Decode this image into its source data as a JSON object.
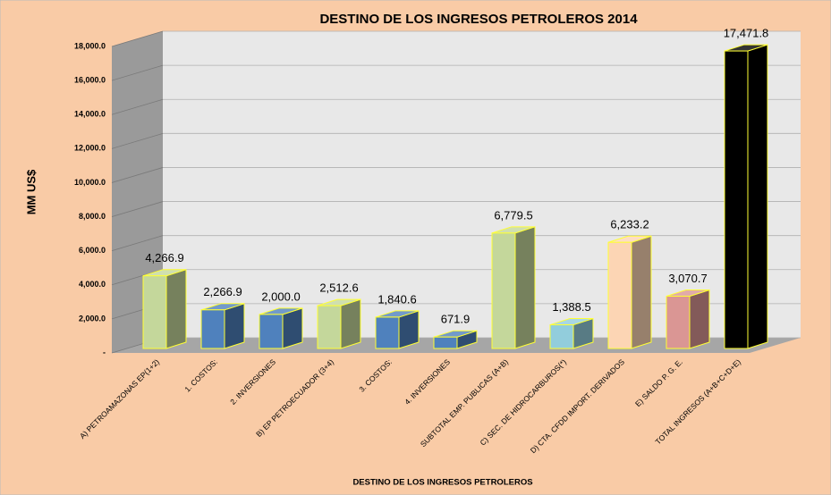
{
  "chart_data": {
    "type": "bar3d",
    "title": "DESTINO DE LOS INGRESOS PETROLEROS    2014",
    "y_label": "MM US$",
    "x_label": "DESTINO DE LOS INGRESOS PETROLEROS",
    "categories": [
      "A)  PETROAMAZONAS EP(1+2)",
      "1. COSTOS:",
      "2. INVERSIONES",
      "B) EP PETROECUADOR (3+4)",
      "3. COSTOS:",
      "4. INVERSIONES",
      "SUBTOTAL EMP. PUBLICAS (A+B)",
      "C)  SEC. DE HIDROCARBUROS(*)",
      "D)  CTA. CFDD  IMPORT. DERIVADOS",
      "E)  SALDO P. G. E.",
      "TOTAL INGRESOS (A+B+C+D+E)"
    ],
    "values": [
      4266.9,
      2266.9,
      2000.0,
      2512.6,
      1840.6,
      671.9,
      6779.5,
      1388.5,
      6233.2,
      3070.7,
      17471.8
    ],
    "value_labels": [
      "4,266.9",
      "2,266.9",
      "2,000.0",
      "2,512.6",
      "1,840.6",
      "671.9",
      "6,779.5",
      "1,388.5",
      "6,233.2",
      "3,070.7",
      "17,471.8"
    ],
    "colors": [
      "#c4d79b",
      "#4f81bd",
      "#4f81bd",
      "#c4d79b",
      "#4f81bd",
      "#4f81bd",
      "#c4d79b",
      "#92cddc",
      "#fcd5b4",
      "#da9694",
      "#000000"
    ],
    "ylim": [
      0,
      18000
    ],
    "yticks": [
      {
        "value": 0,
        "label": "-"
      },
      {
        "value": 2000,
        "label": "2,000.0"
      },
      {
        "value": 4000,
        "label": "4,000.0"
      },
      {
        "value": 6000,
        "label": "6,000.0"
      },
      {
        "value": 8000,
        "label": "8,000.0"
      },
      {
        "value": 10000,
        "label": "10,000.0"
      },
      {
        "value": 12000,
        "label": "12,000.0"
      },
      {
        "value": 14000,
        "label": "14,000.0"
      },
      {
        "value": 16000,
        "label": "16,000.0"
      },
      {
        "value": 18000,
        "label": "18,000.0"
      }
    ],
    "grid": true
  }
}
